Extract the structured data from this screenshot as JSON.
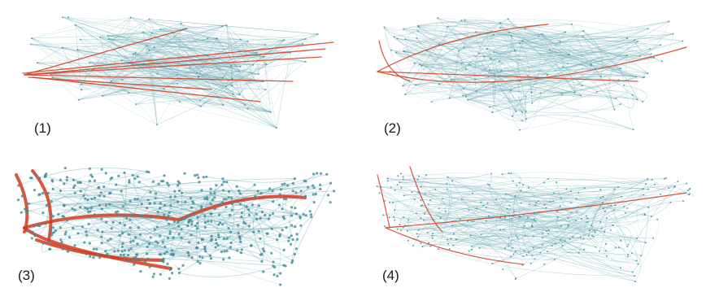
{
  "panels": [
    {
      "label": "(1)"
    },
    {
      "label": "(2)"
    },
    {
      "label": "(3)"
    },
    {
      "label": "(4)"
    }
  ],
  "colors": {
    "edge_blue": "#4f9aa6",
    "edge_blue_light": "#9cc6cc",
    "edge_red": "#d2391f",
    "node": "#3e8d99",
    "background": "#ffffff"
  }
}
